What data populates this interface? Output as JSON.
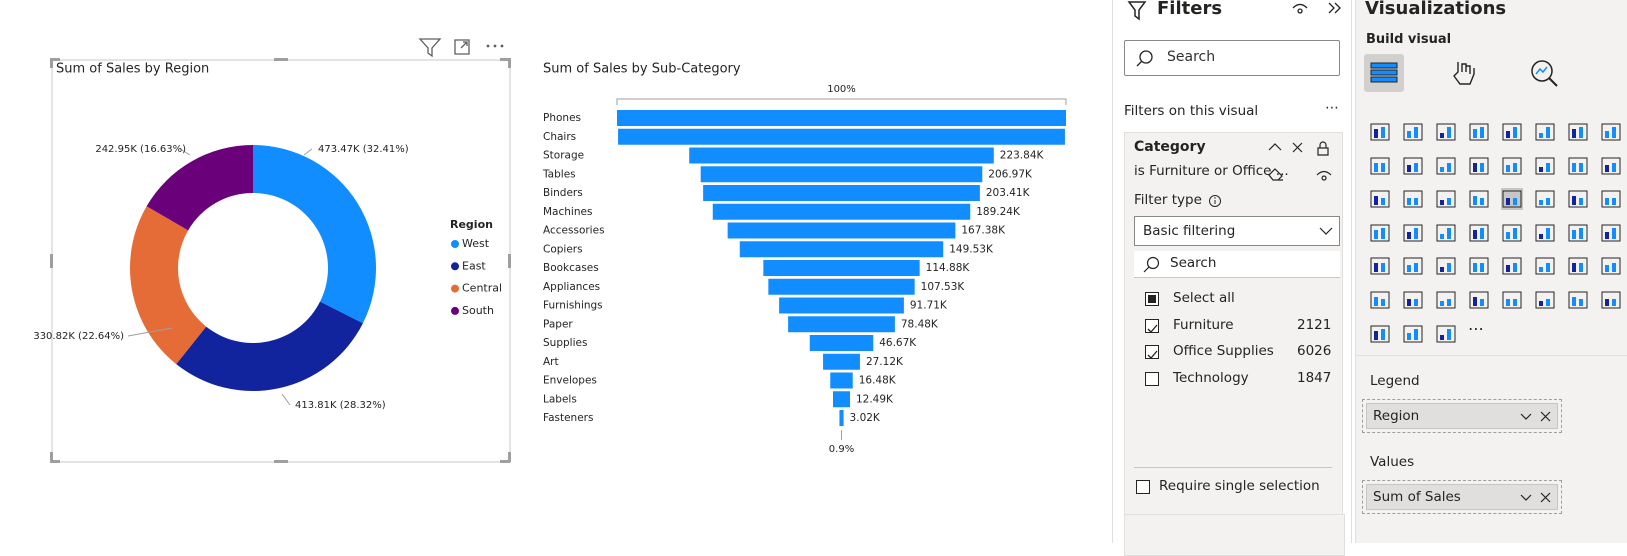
{
  "chart_data": [
    {
      "type": "donut",
      "title": "Sum of Sales by Region",
      "legend_title": "Region",
      "legend_position": "right",
      "categories": [
        "West",
        "East",
        "Central",
        "South"
      ],
      "values": [
        473.47,
        413.81,
        330.82,
        242.95
      ],
      "value_labels": [
        "473.47K (32.41%)",
        "413.81K (28.32%)",
        "330.82K (22.64%)",
        "242.95K (16.63%)"
      ],
      "colors": [
        "#118dff",
        "#12239e",
        "#e66c37",
        "#6b007b"
      ]
    },
    {
      "type": "funnel",
      "title": "Sum of Sales by Sub-Category",
      "color": "#118dff",
      "top_label": "100%",
      "bottom_label": "0.9%",
      "categories": [
        "Phones",
        "Chairs",
        "Storage",
        "Tables",
        "Binders",
        "Machines",
        "Accessories",
        "Copiers",
        "Bookcases",
        "Appliances",
        "Furnishings",
        "Paper",
        "Supplies",
        "Art",
        "Envelopes",
        "Labels",
        "Fasteners"
      ],
      "values": [
        330.01,
        328.45,
        223.84,
        206.97,
        203.41,
        189.24,
        167.38,
        149.53,
        114.88,
        107.53,
        91.71,
        78.48,
        46.67,
        27.12,
        16.48,
        12.49,
        3.02
      ],
      "value_labels": [
        null,
        null,
        "223.84K",
        "206.97K",
        "203.41K",
        "189.24K",
        "167.38K",
        "149.53K",
        "114.88K",
        "107.53K",
        "91.71K",
        "78.48K",
        "46.67K",
        "27.12K",
        "16.48K",
        "12.49K",
        "3.02K"
      ]
    }
  ],
  "filters_pane": {
    "title": "Filters",
    "search": "Search",
    "section": "Filters on this visual",
    "card": {
      "field": "Category",
      "summary": "is Furniture or Office ...",
      "filter_type_label": "Filter type",
      "filter_type": "Basic filtering",
      "search": "Search",
      "items": [
        {
          "label": "Select all",
          "state": "partial"
        },
        {
          "label": "Furniture",
          "count": 2121,
          "state": "checked"
        },
        {
          "label": "Office Supplies",
          "count": 6026,
          "state": "checked"
        },
        {
          "label": "Technology",
          "count": 1847,
          "state": "unchecked"
        }
      ],
      "require_single": "Require single selection"
    }
  },
  "visualizations_pane": {
    "title": "Visualizations",
    "subtitle": "Build visual",
    "wells": [
      {
        "label": "Legend",
        "field": "Region"
      },
      {
        "label": "Values",
        "field": "Sum of Sales"
      }
    ]
  }
}
